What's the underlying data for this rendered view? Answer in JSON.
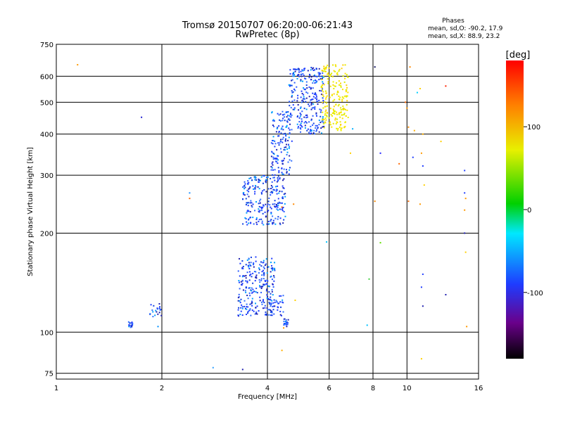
{
  "chart_data": {
    "type": "scatter",
    "title": "Tromsø 20150707 06:20:00-06:21:43",
    "subtitle": "RwPretec (8p)",
    "xlabel": "Frequency [MHz]",
    "ylabel": "Stationary phase Virtual Height [km]",
    "x_scale": "log",
    "y_scale": "log",
    "xlim": [
      1,
      16
    ],
    "ylim": [
      72,
      750
    ],
    "x_ticks": [
      1,
      2,
      4,
      6,
      8,
      10,
      16
    ],
    "x_tick_labels": [
      "1",
      "2",
      "4",
      "6",
      "8",
      "10",
      "16"
    ],
    "y_ticks": [
      75,
      100,
      200,
      300,
      400,
      500,
      600,
      750
    ],
    "y_tick_labels": [
      "75",
      "100",
      "200",
      "300",
      "400",
      "500",
      "600",
      "750"
    ],
    "grid": true,
    "phase_info": {
      "title": "Phases",
      "line1": "mean, sd,O: -90.2, 17.9",
      "line2": "mean, sd,X: 88.9, 23.2"
    },
    "colorbar": {
      "label": "[deg]",
      "range": [
        -180,
        180
      ],
      "ticks": [
        100,
        0,
        -100
      ],
      "tick_labels": [
        "100",
        "0",
        "-100"
      ]
    },
    "series": [
      {
        "name": "O",
        "color": "#1e3cff",
        "clusters": [
          {
            "f": [
              1.6,
              1.65
            ],
            "h": [
              103,
              108
            ]
          },
          {
            "f": [
              1.85,
              2.0
            ],
            "h": [
              110,
              122
            ]
          },
          {
            "f": [
              3.3,
              4.2
            ],
            "h": [
              112,
              170
            ]
          },
          {
            "f": [
              4.05,
              4.45
            ],
            "h": [
              112,
              130
            ]
          },
          {
            "f": [
              4.45,
              4.6
            ],
            "h": [
              104,
              110
            ]
          },
          {
            "f": [
              3.4,
              4.5
            ],
            "h": [
              212,
              300
            ]
          },
          {
            "f": [
              4.1,
              4.7
            ],
            "h": [
              300,
              470
            ]
          },
          {
            "f": [
              4.6,
              5.8
            ],
            "h": [
              400,
              640
            ]
          }
        ]
      },
      {
        "name": "X",
        "color": "#e8e800",
        "clusters": [
          {
            "f": [
              5.7,
              6.8
            ],
            "h": [
              410,
              650
            ]
          }
        ]
      }
    ],
    "scatter_points": [
      {
        "f": 1.15,
        "h": 650,
        "c": "#ff9900"
      },
      {
        "f": 1.75,
        "h": 450,
        "c": "#2020d0"
      },
      {
        "f": 1.95,
        "h": 104,
        "c": "#0090ff"
      },
      {
        "f": 2.4,
        "h": 265,
        "c": "#1e90ff"
      },
      {
        "f": 2.4,
        "h": 255,
        "c": "#ff6600"
      },
      {
        "f": 2.8,
        "h": 78,
        "c": "#2fa0ff"
      },
      {
        "f": 3.4,
        "h": 77,
        "c": "#2020b0"
      },
      {
        "f": 4.4,
        "h": 88,
        "c": "#ffb000"
      },
      {
        "f": 4.45,
        "h": 103,
        "c": "#ff9900"
      },
      {
        "f": 4.8,
        "h": 125,
        "c": "#ffd000"
      },
      {
        "f": 4.4,
        "h": 240,
        "c": "#ff6600"
      },
      {
        "f": 4.75,
        "h": 245,
        "c": "#ff8800"
      },
      {
        "f": 5.9,
        "h": 188,
        "c": "#00c0ff"
      },
      {
        "f": 7.0,
        "h": 415,
        "c": "#00b0ff"
      },
      {
        "f": 6.9,
        "h": 350,
        "c": "#ffd000"
      },
      {
        "f": 7.7,
        "h": 105,
        "c": "#00c0ff"
      },
      {
        "f": 7.8,
        "h": 145,
        "c": "#40d040"
      },
      {
        "f": 8.1,
        "h": 250,
        "c": "#ff8800"
      },
      {
        "f": 8.1,
        "h": 640,
        "c": "#101060"
      },
      {
        "f": 8.4,
        "h": 350,
        "c": "#2020ff"
      },
      {
        "f": 8.4,
        "h": 187,
        "c": "#60e000"
      },
      {
        "f": 9.5,
        "h": 325,
        "c": "#ff6600"
      },
      {
        "f": 9.9,
        "h": 500,
        "c": "#ff6600"
      },
      {
        "f": 10.0,
        "h": 480,
        "c": "#ff9900"
      },
      {
        "f": 10.1,
        "h": 420,
        "c": "#ff8800"
      },
      {
        "f": 10.1,
        "h": 250,
        "c": "#ff6600"
      },
      {
        "f": 10.2,
        "h": 640,
        "c": "#ff8800"
      },
      {
        "f": 10.5,
        "h": 410,
        "c": "#ffb000"
      },
      {
        "f": 10.4,
        "h": 340,
        "c": "#1e3cff"
      },
      {
        "f": 10.7,
        "h": 535,
        "c": "#00d0ff"
      },
      {
        "f": 10.9,
        "h": 550,
        "c": "#ffd000"
      },
      {
        "f": 11.1,
        "h": 400,
        "c": "#ffb000"
      },
      {
        "f": 11.0,
        "h": 350,
        "c": "#ff9900"
      },
      {
        "f": 11.1,
        "h": 320,
        "c": "#1e3cff"
      },
      {
        "f": 11.2,
        "h": 280,
        "c": "#ffd000"
      },
      {
        "f": 10.9,
        "h": 245,
        "c": "#ff9900"
      },
      {
        "f": 11.1,
        "h": 150,
        "c": "#1e3cff"
      },
      {
        "f": 11.0,
        "h": 137,
        "c": "#1e3cff"
      },
      {
        "f": 11.1,
        "h": 120,
        "c": "#2020b0"
      },
      {
        "f": 11.0,
        "h": 83,
        "c": "#ffd000"
      },
      {
        "f": 12.5,
        "h": 380,
        "c": "#ffd000"
      },
      {
        "f": 12.9,
        "h": 560,
        "c": "#ff2000"
      },
      {
        "f": 12.9,
        "h": 130,
        "c": "#2020b0"
      },
      {
        "f": 14.6,
        "h": 310,
        "c": "#1e3cff"
      },
      {
        "f": 14.6,
        "h": 265,
        "c": "#1e3cff"
      },
      {
        "f": 14.7,
        "h": 255,
        "c": "#ff9900"
      },
      {
        "f": 14.6,
        "h": 235,
        "c": "#ff9900"
      },
      {
        "f": 14.6,
        "h": 200,
        "c": "#2020b0"
      },
      {
        "f": 14.7,
        "h": 175,
        "c": "#ffd000"
      },
      {
        "f": 14.8,
        "h": 104,
        "c": "#ff9900"
      }
    ]
  }
}
